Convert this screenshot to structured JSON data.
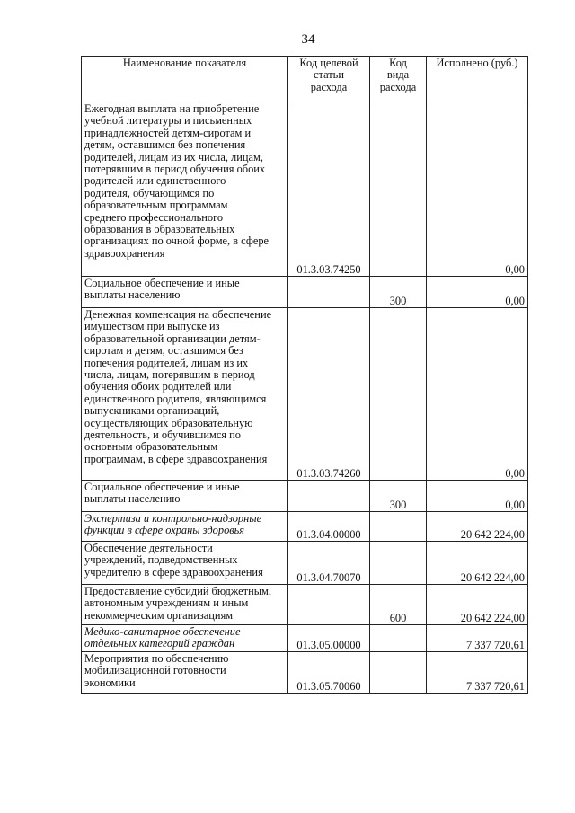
{
  "page_number": "34",
  "table": {
    "headers": [
      [
        "Наименование показателя"
      ],
      [
        "Код целевой",
        "статьи",
        "расхода"
      ],
      [
        "Код",
        "вида",
        "расхода"
      ],
      [
        "Исполнено (руб.)"
      ]
    ],
    "rows": [
      {
        "name": [
          "Ежегодная выплата на приобретение",
          "учебной литературы и письменных",
          "принадлежностей детям-сиротам и",
          "детям, оставшимся без попечения",
          "родителей, лицам из их числа, лицам,",
          "потерявшим в период обучения обоих",
          "родителей или единственного",
          "родителя, обучающимся по",
          "образовательным программам",
          "среднего профессионального",
          "образования в образовательных",
          "организациях по очной форме, в сфере",
          "здравоохранения"
        ],
        "target_code": "01.3.03.74250",
        "type_code": "",
        "amount": "0,00",
        "italic": false
      },
      {
        "name": [
          "Социальное обеспечение и иные",
          "выплаты населению"
        ],
        "target_code": "",
        "type_code": "300",
        "amount": "0,00",
        "italic": false
      },
      {
        "name": [
          "Денежная компенсация на обеспечение",
          "имуществом при выпуске из",
          "образовательной организации детям-",
          "сиротам и детям, оставшимся без",
          "попечения родителей, лицам из их",
          "числа, лицам, потерявшим в период",
          "обучения обоих родителей или",
          "единственного родителя, являющимся",
          "выпускниками организаций,",
          "осуществляющих образовательную",
          "деятельность, и обучившимся по",
          "основным образовательным",
          "программам, в сфере здравоохранения"
        ],
        "target_code": "01.3.03.74260",
        "type_code": "",
        "amount": "0,00",
        "italic": false
      },
      {
        "name": [
          "Социальное обеспечение и иные",
          "выплаты населению"
        ],
        "target_code": "",
        "type_code": "300",
        "amount": "0,00",
        "italic": false
      },
      {
        "name": [
          "Экспертиза и контрольно-надзорные",
          "функции в сфере охраны здоровья"
        ],
        "target_code": "01.3.04.00000",
        "type_code": "",
        "amount": "20 642 224,00",
        "italic": true
      },
      {
        "name": [
          "Обеспечение деятельности",
          "учреждений, подведомственных",
          "учредителю в сфере здравоохранения"
        ],
        "target_code": "01.3.04.70070",
        "type_code": "",
        "amount": "20 642 224,00",
        "italic": false
      },
      {
        "name": [
          "Предоставление субсидий бюджетным,",
          "автономным учреждениям и иным",
          "некоммерческим организациям"
        ],
        "target_code": "",
        "type_code": "600",
        "amount": "20 642 224,00",
        "italic": false
      },
      {
        "name": [
          "Медико-санитарное обеспечение",
          "отдельных категорий граждан"
        ],
        "target_code": "01.3.05.00000",
        "type_code": "",
        "amount": "7 337 720,61",
        "italic": true
      },
      {
        "name": [
          "Мероприятия по обеспечению",
          "мобилизационной готовности",
          "экономики"
        ],
        "target_code": "01.3.05.70060",
        "type_code": "",
        "amount": "7 337 720,61",
        "italic": false
      }
    ]
  }
}
